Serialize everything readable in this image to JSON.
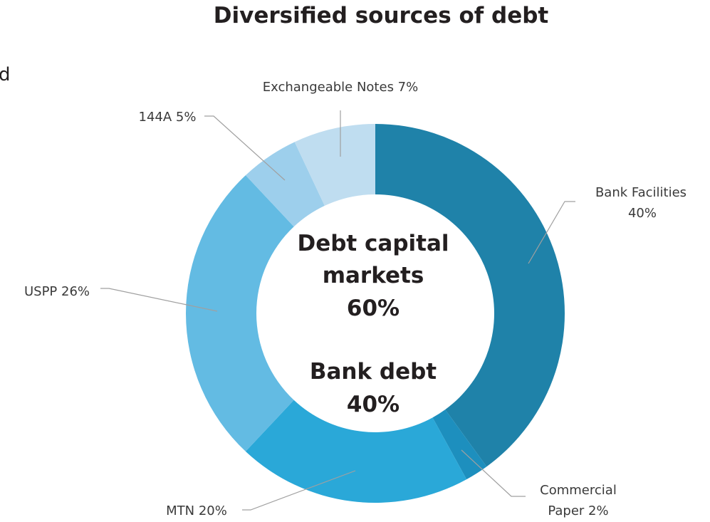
{
  "chart_data": {
    "type": "pie",
    "variant": "donut",
    "title": "Diversified sources of debt",
    "slices": [
      {
        "label": "Bank Facilities",
        "value": 40,
        "label_lines": [
          "Bank Facilities",
          "40%"
        ],
        "color": "#1f82a9"
      },
      {
        "label": "Commercial Paper",
        "value": 2,
        "label_lines": [
          "Commercial",
          "Paper 2%"
        ],
        "color": "#1d8fbe"
      },
      {
        "label": "MTN",
        "value": 20,
        "label_lines": [
          "MTN 20%"
        ],
        "color": "#2aa8d8"
      },
      {
        "label": "USPP",
        "value": 26,
        "label_lines": [
          "USPP 26%"
        ],
        "color": "#63bbe3"
      },
      {
        "label": "144A",
        "value": 5,
        "label_lines": [
          "144A 5%"
        ],
        "color": "#9dcfec"
      },
      {
        "label": "Exchangeable Notes",
        "value": 7,
        "label_lines": [
          "Exchangeable Notes 7%"
        ],
        "color": "#bfddf0"
      }
    ],
    "center_text": [
      "Debt capital",
      "markets",
      "60%",
      "Bank debt",
      "40%"
    ]
  },
  "stray_text": "d"
}
